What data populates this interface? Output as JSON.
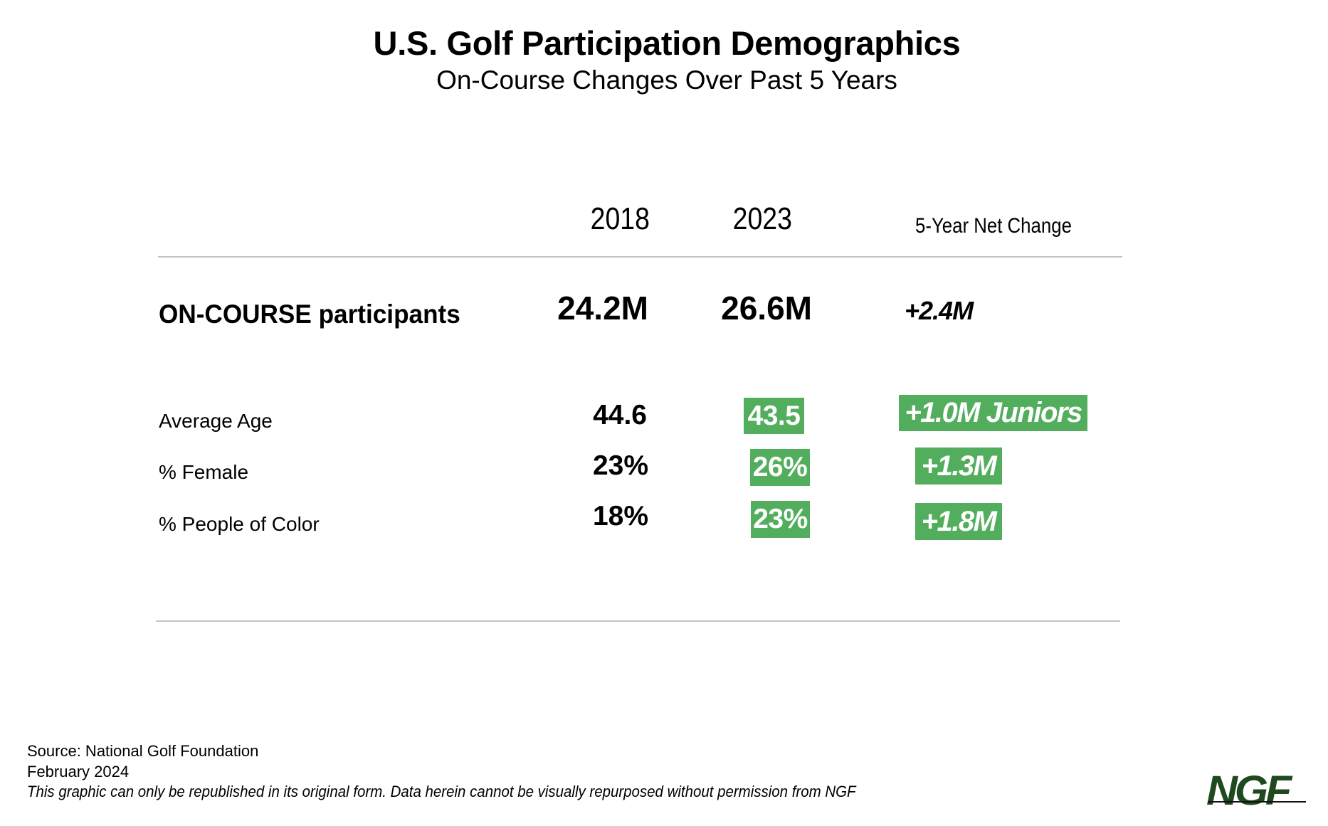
{
  "title": "U.S. Golf Participation Demographics",
  "subtitle": "On-Course Changes Over Past 5 Years",
  "table": {
    "headers": {
      "col_2018": "2018",
      "col_2023": "2023",
      "col_net": "5-Year Net Change"
    },
    "participants": {
      "label": "ON-COURSE participants",
      "v2018": "24.2M",
      "v2023": "26.6M",
      "net": "+2.4M"
    },
    "rows": [
      {
        "label": "Average Age",
        "v2018": "44.6",
        "v2023": "43.5",
        "net": "+1.0M Juniors"
      },
      {
        "label": "% Female",
        "v2018": "23%",
        "v2023": "26%",
        "net": "+1.3M"
      },
      {
        "label": "% People of Color",
        "v2018": "18%",
        "v2023": "23%",
        "net": "+1.8M"
      }
    ]
  },
  "highlight_color": "#52ae5c",
  "footer": {
    "source": "Source: National Golf Foundation",
    "date": "February 2024",
    "note": "This graphic can only be republished in its original form. Data herein cannot be visually repurposed without permission from NGF"
  },
  "logo": {
    "text": "NGF",
    "color": "#1f4a1f"
  }
}
